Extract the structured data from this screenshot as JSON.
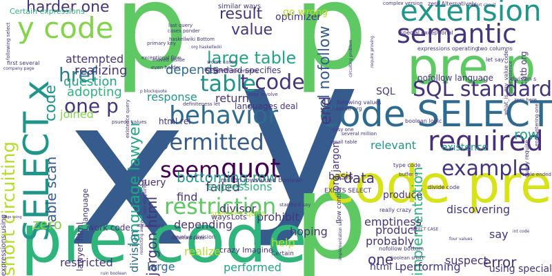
{
  "palette": {
    "navy": "#3b5287",
    "indigo": "#46337e",
    "plum": "#472d7b",
    "blue": "#365c8d",
    "steel": "#2f6b8e",
    "cerulean": "#277f8e",
    "teal": "#1f958b",
    "sea": "#21a585",
    "green": "#2fb47c",
    "lime": "#5ec962",
    "chartreuse": "#84d44b",
    "yellowgreen": "#b5de2b",
    "yellow": "#d8e219",
    "purple": "#440154"
  },
  "cloud": {
    "words": [
      {
        "text": "x",
        "color": "blue"
      },
      {
        "text": "y",
        "color": "blue"
      },
      {
        "text": "p",
        "color": "lime"
      },
      {
        "text": "p",
        "color": "lime"
      },
      {
        "text": "p",
        "color": "lime"
      },
      {
        "text": "pre code",
        "color": "green"
      },
      {
        "text": "code pre",
        "color": "yellow"
      },
      {
        "text": "code SELECT",
        "color": "steel"
      },
      {
        "text": "pre p",
        "color": "lime"
      },
      {
        "text": "y code",
        "color": "chartreuse"
      },
      {
        "text": "SELECT x",
        "color": "teal"
      },
      {
        "text": "semantic",
        "color": "indigo"
      },
      {
        "text": "extension",
        "color": "teal"
      },
      {
        "text": "behavior",
        "color": "steel"
      },
      {
        "text": "required",
        "color": "plum"
      },
      {
        "text": "quot",
        "color": "purple"
      },
      {
        "text": "seem",
        "color": "purple"
      },
      {
        "text": "restriction",
        "color": "lime"
      },
      {
        "text": "permitted",
        "color": "blue"
      },
      {
        "text": "table",
        "color": "teal"
      },
      {
        "text": "example",
        "color": "indigo"
      },
      {
        "text": "SQL standard",
        "color": "indigo"
      },
      {
        "text": "short circuiting",
        "color": "yellowgreen"
      },
      {
        "text": "large table",
        "color": "sea"
      },
      {
        "text": "t code",
        "color": "indigo"
      },
      {
        "text": "one p",
        "color": "indigo"
      },
      {
        "text": "href",
        "color": "cerulean"
      },
      {
        "text": "harder one",
        "color": "indigo"
      },
      {
        "text": "language lawyer",
        "color": "sea"
      },
      {
        "text": "code",
        "color": "teal"
      },
      {
        "text": "value",
        "color": "indigo"
      },
      {
        "text": "result",
        "color": "indigo"
      },
      {
        "text": "rel nofollow",
        "color": "blue"
      },
      {
        "text": "end",
        "color": "indigo"
      },
      {
        "text": "table scan",
        "color": "blue"
      },
      {
        "text": "bottoming row",
        "color": "teal"
      },
      {
        "text": "zero",
        "color": "chartreuse"
      },
      {
        "text": "error",
        "color": "indigo"
      },
      {
        "text": "one",
        "color": "indigo"
      },
      {
        "text": "implementation",
        "color": "green"
      },
      {
        "text": "row",
        "color": "sea"
      },
      {
        "text": "data",
        "color": "indigo"
      },
      {
        "text": "jargon html",
        "color": "indigo"
      },
      {
        "text": "depends",
        "color": "steel"
      },
      {
        "text": "realizing",
        "color": "indigo"
      },
      {
        "text": "question",
        "color": "sea"
      },
      {
        "text": "adopting",
        "color": "green"
      },
      {
        "text": "joined",
        "color": "chartreuse"
      },
      {
        "text": "attempted",
        "color": "indigo"
      },
      {
        "text": "response",
        "color": "teal"
      },
      {
        "text": "return",
        "color": "indigo"
      },
      {
        "text": "failed",
        "color": "indigo"
      },
      {
        "text": "find",
        "color": "indigo"
      },
      {
        "text": "expressions",
        "color": "green"
      },
      {
        "text": "divisor",
        "color": "indigo"
      },
      {
        "text": "prohibit",
        "color": "indigo"
      },
      {
        "text": "hoping",
        "color": "indigo"
      },
      {
        "text": "help",
        "color": "yellowgreen"
      },
      {
        "text": "performed",
        "color": "sea"
      },
      {
        "text": "realize",
        "color": "yellowgreen"
      },
      {
        "text": "large",
        "color": "steel"
      },
      {
        "text": "division",
        "color": "steel"
      },
      {
        "text": "restricted",
        "color": "indigo"
      },
      {
        "text": "work code",
        "color": "indigo"
      },
      {
        "text": "depending",
        "color": "indigo"
      },
      {
        "text": "product",
        "color": "indigo"
      },
      {
        "text": "probably",
        "color": "indigo"
      },
      {
        "text": "emptiness",
        "color": "indigo"
      },
      {
        "text": "discovering",
        "color": "indigo"
      },
      {
        "text": "suspect",
        "color": "indigo"
      },
      {
        "text": "performing",
        "color": "indigo"
      },
      {
        "text": "using special",
        "color": "indigo"
      },
      {
        "text": "html L",
        "color": "indigo"
      },
      {
        "text": "existence",
        "color": "teal"
      },
      {
        "text": "relevant",
        "color": "teal"
      },
      {
        "text": "basis",
        "color": "indigo"
      },
      {
        "text": "produce",
        "color": "indigo"
      },
      {
        "text": "say",
        "color": "indigo"
      },
      {
        "text": "SQL",
        "color": "indigo"
      },
      {
        "text": "optimizer",
        "color": "indigo"
      },
      {
        "text": "go wrong",
        "color": "yellowgreen"
      },
      {
        "text": "org jargon",
        "color": "indigo"
      },
      {
        "text": "nofollow language",
        "color": "indigo"
      },
      {
        "text": "standard specifies",
        "color": "indigo"
      },
      {
        "text": "languages deal",
        "color": "indigo"
      },
      {
        "text": "query",
        "color": "indigo"
      },
      {
        "text": "lawyer html",
        "color": "indigo"
      },
      {
        "text": "L language",
        "color": "indigo"
      },
      {
        "text": "html rel",
        "color": "indigo"
      },
      {
        "text": "similar ways",
        "color": "indigo"
      },
      {
        "text": "Certain expressions",
        "color": "green"
      },
      {
        "text": "specifies quite",
        "color": "yellowgreen"
      },
      {
        "text": "Lots",
        "color": "indigo"
      },
      {
        "text": "crazy Imagine",
        "color": "indigo"
      },
      {
        "text": "ways",
        "color": "indigo"
      },
      {
        "text": "flow control",
        "color": "indigo"
      },
      {
        "text": "million rows",
        "color": "indigo"
      },
      {
        "text": "valued boolean",
        "color": "indigo"
      },
      {
        "text": "EXISTS SELECT",
        "color": "indigo"
      },
      {
        "text": "boolean logic",
        "color": "indigo"
      },
      {
        "text": "following values",
        "color": "indigo"
      },
      {
        "text": "nofollow bottom",
        "color": "indigo"
      },
      {
        "text": "really crazy",
        "color": "indigo"
      },
      {
        "text": "type code",
        "color": "indigo"
      },
      {
        "text": "divide code",
        "color": "indigo"
      },
      {
        "text": "complex version",
        "color": "indigo"
      },
      {
        "text": "special exceptional",
        "color": "indigo"
      },
      {
        "text": "expressions operating",
        "color": "indigo"
      },
      {
        "text": "two columns",
        "color": "indigo"
      },
      {
        "text": "let say",
        "color": "indigo"
      },
      {
        "text": "zero here",
        "color": "indigo"
      },
      {
        "text": "division s",
        "color": "indigo"
      },
      {
        "text": "catb org",
        "color": "indigo"
      },
      {
        "text": "query require",
        "color": "indigo"
      },
      {
        "text": "table ended",
        "color": "indigo"
      },
      {
        "text": "first several",
        "color": "indigo"
      },
      {
        "text": "company page",
        "color": "indigo"
      },
      {
        "text": "following select",
        "color": "indigo"
      },
      {
        "text": "last query",
        "color": "indigo"
      },
      {
        "text": "cases ponder",
        "color": "indigo"
      },
      {
        "text": "haskellwiki Bottom",
        "color": "indigo"
      },
      {
        "text": "org haskellwiki",
        "color": "indigo"
      },
      {
        "text": "primary key",
        "color": "indigo"
      },
      {
        "text": "exceptional flow",
        "color": "indigo"
      },
      {
        "text": "moved inside",
        "color": "indigo"
      },
      {
        "text": "even harder",
        "color": "indigo"
      },
      {
        "text": "worse cases",
        "color": "indigo"
      },
      {
        "text": "select statements",
        "color": "indigo"
      },
      {
        "text": "Bottom rel",
        "color": "indigo"
      },
      {
        "text": "haskell org",
        "color": "indigo"
      },
      {
        "text": "definiteness let",
        "color": "indigo"
      },
      {
        "text": "may involve",
        "color": "indigo"
      },
      {
        "text": "psuedo values",
        "color": "indigo"
      },
      {
        "text": "existence query",
        "color": "indigo"
      },
      {
        "text": "involve division",
        "color": "indigo"
      },
      {
        "text": "columns code",
        "color": "indigo"
      },
      {
        "text": "Certain",
        "color": "indigo"
      },
      {
        "text": "standard say",
        "color": "indigo"
      },
      {
        "text": "several million",
        "color": "indigo"
      },
      {
        "text": "easy one",
        "color": "indigo"
      },
      {
        "text": "small table",
        "color": "indigo"
      },
      {
        "text": "boolean short",
        "color": "indigo"
      },
      {
        "text": "SELECT CASE",
        "color": "indigo"
      },
      {
        "text": "four values",
        "color": "indigo"
      },
      {
        "text": "int code",
        "color": "indigo"
      },
      {
        "text": "circuiting problem",
        "color": "indigo"
      },
      {
        "text": "implementation say",
        "color": "indigo"
      },
      {
        "text": "encountering one",
        "color": "indigo"
      },
      {
        "text": "restricting away",
        "color": "indigo"
      },
      {
        "text": "statements p",
        "color": "indigo"
      },
      {
        "text": "ruin boolean",
        "color": "indigo"
      },
      {
        "text": "expressions using",
        "color": "indigo"
      },
      {
        "text": "page using",
        "color": "indigo"
      },
      {
        "text": "non emptiness",
        "color": "indigo"
      },
      {
        "text": "p blockquote",
        "color": "indigo"
      },
      {
        "text": "zero Alternatively",
        "color": "indigo"
      },
      {
        "text": "short circuit",
        "color": "indigo"
      },
      {
        "text": "require proving",
        "color": "indigo"
      },
      {
        "text": "what_is_my_value code",
        "color": "indigo"
      },
      {
        "text": "non existence",
        "color": "indigo"
      },
      {
        "text": "buffer p",
        "color": "indigo"
      }
    ]
  }
}
